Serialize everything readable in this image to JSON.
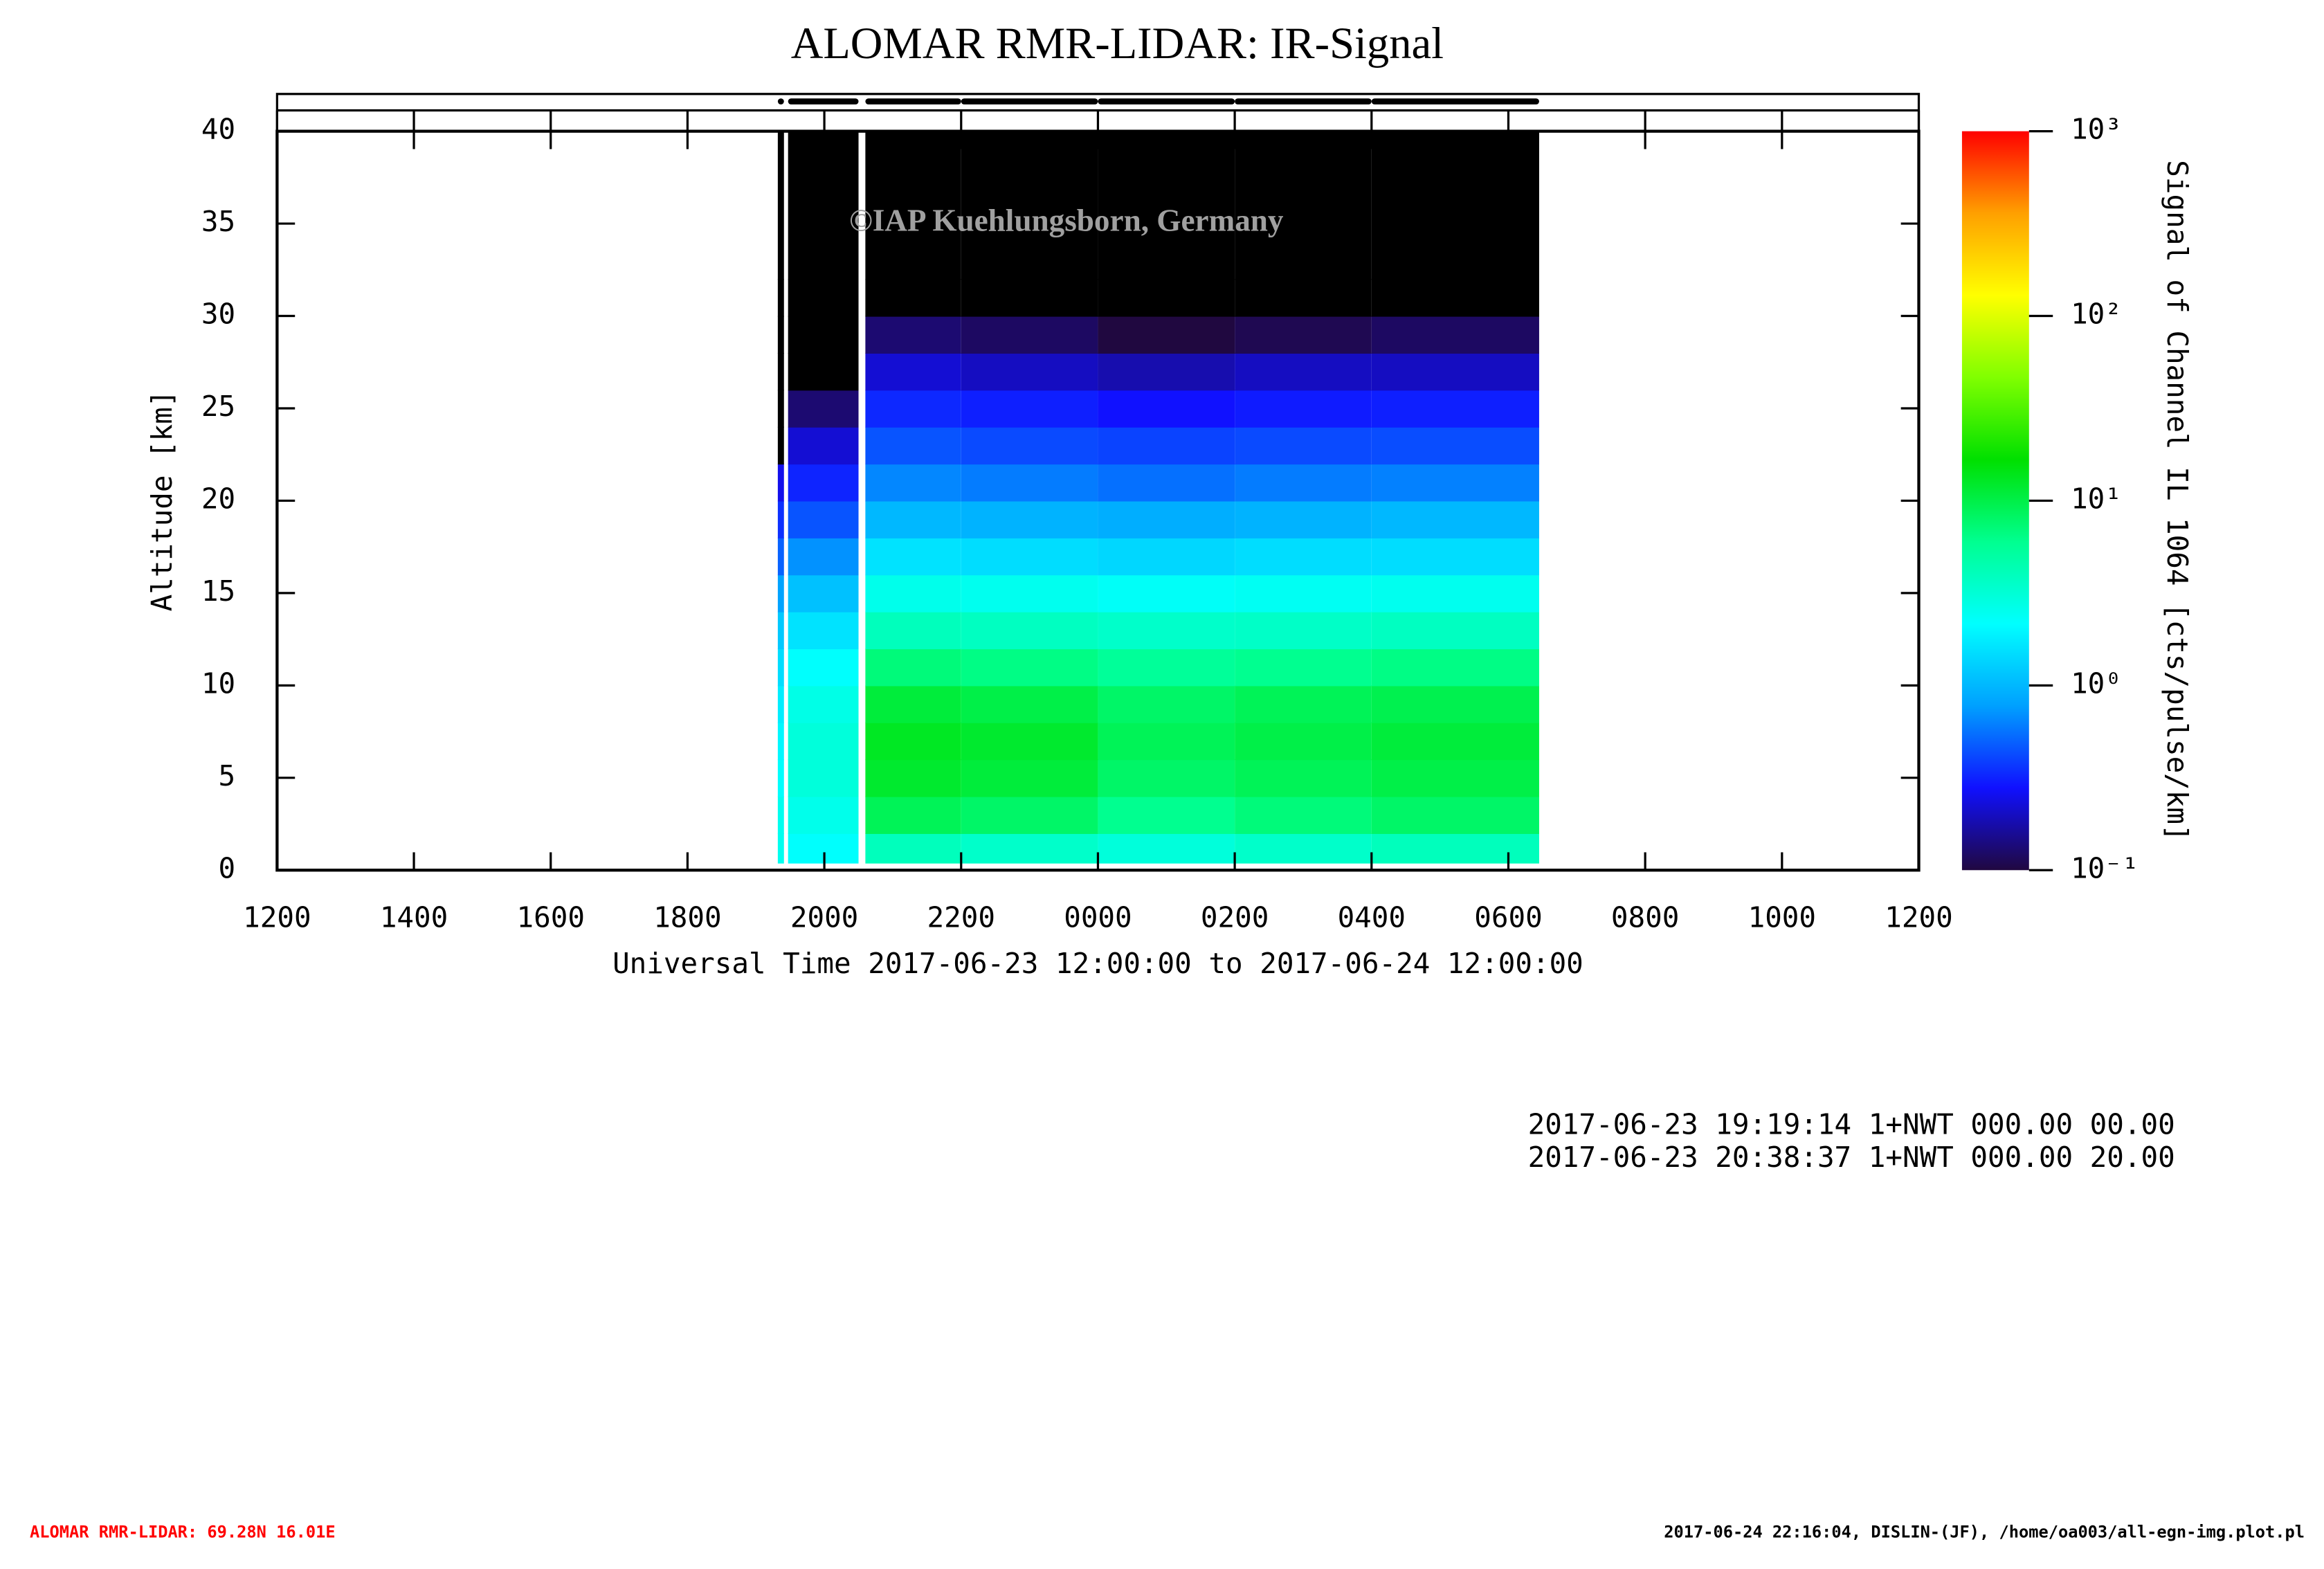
{
  "chart_data": {
    "type": "heatmap",
    "title": "ALOMAR RMR-LIDAR: IR-Signal",
    "xlabel": "Universal Time 2017-06-23 12:00:00 to 2017-06-24 12:00:00",
    "ylabel": "Altitude [km]",
    "colorbar_label": "Signal of Channel IL 1064 [cts/pulse/km]",
    "watermark": "©IAP Kuehlungsborn, Germany",
    "title_color": "#0000ff",
    "xlim": [
      12,
      36
    ],
    "xticks": [
      {
        "value": 12,
        "label": "1200"
      },
      {
        "value": 14,
        "label": "1400"
      },
      {
        "value": 16,
        "label": "1600"
      },
      {
        "value": 18,
        "label": "1800"
      },
      {
        "value": 20,
        "label": "2000"
      },
      {
        "value": 22,
        "label": "2200"
      },
      {
        "value": 24,
        "label": "0000"
      },
      {
        "value": 26,
        "label": "0200"
      },
      {
        "value": 28,
        "label": "0400"
      },
      {
        "value": 30,
        "label": "0600"
      },
      {
        "value": 32,
        "label": "0800"
      },
      {
        "value": 34,
        "label": "1000"
      },
      {
        "value": 36,
        "label": "1200"
      }
    ],
    "ylim": [
      0,
      40
    ],
    "yticks": [
      0,
      5,
      10,
      15,
      20,
      25,
      30,
      35,
      40
    ],
    "x_edges": [
      19.32,
      19.41,
      19.47,
      20.5,
      20.6,
      22,
      24,
      26,
      28,
      30.45
    ],
    "y_edges": [
      0.4,
      2,
      4,
      6,
      8,
      10,
      12,
      14,
      16,
      18,
      20,
      22,
      24,
      26,
      28,
      30,
      32,
      40
    ],
    "z": [
      [
        2.5,
        2.5,
        2.2,
        2,
        1.8,
        1.5,
        1.2,
        0.8,
        0.5,
        0.35,
        0.25,
        0.05,
        0.04,
        0.03,
        0.03,
        0.02,
        0.02
      ],
      null,
      [
        2.2,
        2.6,
        3,
        3,
        2.7,
        2.2,
        1.6,
        1.1,
        0.7,
        0.45,
        0.32,
        0.22,
        0.13,
        0.07,
        0.04,
        0.03,
        0.02
      ],
      null,
      [
        4,
        9,
        12,
        13,
        11,
        7,
        4,
        2.6,
        1.6,
        1,
        0.65,
        0.45,
        0.33,
        0.22,
        0.13,
        0.08,
        0.04
      ],
      [
        3.5,
        8,
        11,
        12,
        10,
        6.5,
        3.8,
        2.5,
        1.5,
        0.95,
        0.6,
        0.42,
        0.31,
        0.2,
        0.12,
        0.07,
        0.03
      ],
      [
        3,
        6,
        8,
        9,
        8,
        5.5,
        3.5,
        2.3,
        1.4,
        0.9,
        0.55,
        0.4,
        0.28,
        0.18,
        0.1,
        0.06,
        0.03
      ],
      [
        3.5,
        7,
        9,
        10,
        9,
        6,
        3.6,
        2.4,
        1.5,
        0.95,
        0.6,
        0.42,
        0.3,
        0.2,
        0.11,
        0.07,
        0.03
      ],
      [
        4,
        8,
        10,
        11,
        9.5,
        6.5,
        3.8,
        2.5,
        1.5,
        1,
        0.62,
        0.43,
        0.31,
        0.2,
        0.12,
        0.07,
        0.03
      ]
    ],
    "zlim": [
      0.1,
      1000
    ],
    "zscale": "log",
    "zticks": [
      {
        "value": 0.1,
        "label": "10⁻¹"
      },
      {
        "value": 1,
        "label": "10⁰"
      },
      {
        "value": 10,
        "label": "10¹"
      },
      {
        "value": 100,
        "label": "10²"
      },
      {
        "value": 1000,
        "label": "10³"
      }
    ],
    "colormap": [
      "#200840",
      "#1010ff",
      "#00a0ff",
      "#00ffff",
      "#00ff90",
      "#00e000",
      "#80ff00",
      "#ffff00",
      "#ffa000",
      "#ff0000"
    ],
    "under_color": "#000000"
  },
  "notes": [
    "2017-06-23 19:19:14 1+NWT 000.00 00.00",
    "2017-06-23 20:38:37 1+NWT 000.00 20.00"
  ],
  "footer": {
    "left": "ALOMAR RMR-LIDAR: 69.28N 16.01E",
    "right": "2017-06-24 22:16:04, DISLIN-(JF), /home/oa003/all-egn-img.plot.pl"
  }
}
